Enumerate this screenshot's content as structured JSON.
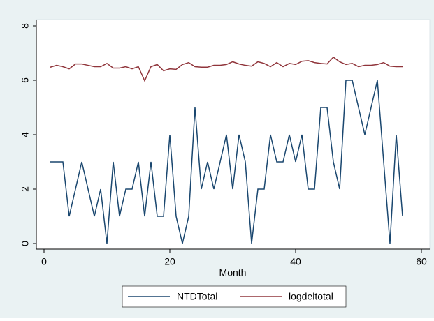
{
  "chart_data": {
    "type": "line",
    "xlabel": "Month",
    "x": [
      1,
      2,
      3,
      4,
      5,
      6,
      7,
      8,
      9,
      10,
      11,
      12,
      13,
      14,
      15,
      16,
      17,
      18,
      19,
      20,
      21,
      22,
      23,
      24,
      25,
      26,
      27,
      28,
      29,
      30,
      31,
      32,
      33,
      34,
      35,
      36,
      37,
      38,
      39,
      40,
      41,
      42,
      43,
      44,
      45,
      46,
      47,
      48,
      49,
      50,
      51,
      52,
      53,
      54,
      55,
      56,
      57
    ],
    "series": [
      {
        "name": "NTDTotal",
        "color": "#1a476f",
        "values": [
          3,
          3,
          3,
          1,
          2,
          3,
          2,
          1,
          2,
          0,
          3,
          1,
          2,
          2,
          3,
          1,
          3,
          1,
          1,
          4,
          1,
          0,
          1,
          5,
          2,
          3,
          2,
          3,
          4,
          2,
          4,
          3,
          0,
          2,
          2,
          4,
          3,
          3,
          4,
          3,
          4,
          2,
          2,
          5,
          5,
          3,
          2,
          6,
          6,
          5,
          4,
          5,
          6,
          3,
          0,
          4,
          1
        ]
      },
      {
        "name": "logdeltotal",
        "color": "#90353b",
        "values": [
          6.48,
          6.55,
          6.5,
          6.42,
          6.6,
          6.6,
          6.55,
          6.5,
          6.5,
          6.62,
          6.45,
          6.45,
          6.5,
          6.42,
          6.5,
          5.98,
          6.5,
          6.58,
          6.35,
          6.42,
          6.4,
          6.58,
          6.65,
          6.5,
          6.48,
          6.48,
          6.55,
          6.55,
          6.58,
          6.68,
          6.6,
          6.55,
          6.52,
          6.68,
          6.62,
          6.5,
          6.65,
          6.5,
          6.62,
          6.58,
          6.7,
          6.72,
          6.65,
          6.62,
          6.6,
          6.85,
          6.68,
          6.58,
          6.62,
          6.5,
          6.55,
          6.55,
          6.58,
          6.65,
          6.52,
          6.5,
          6.5
        ]
      }
    ],
    "xlim": [
      0,
      60
    ],
    "xticks": [
      0,
      20,
      40,
      60
    ],
    "ylim": [
      0,
      8
    ],
    "yticks": [
      0,
      2,
      4,
      6,
      8
    ],
    "legend": "bottom"
  }
}
